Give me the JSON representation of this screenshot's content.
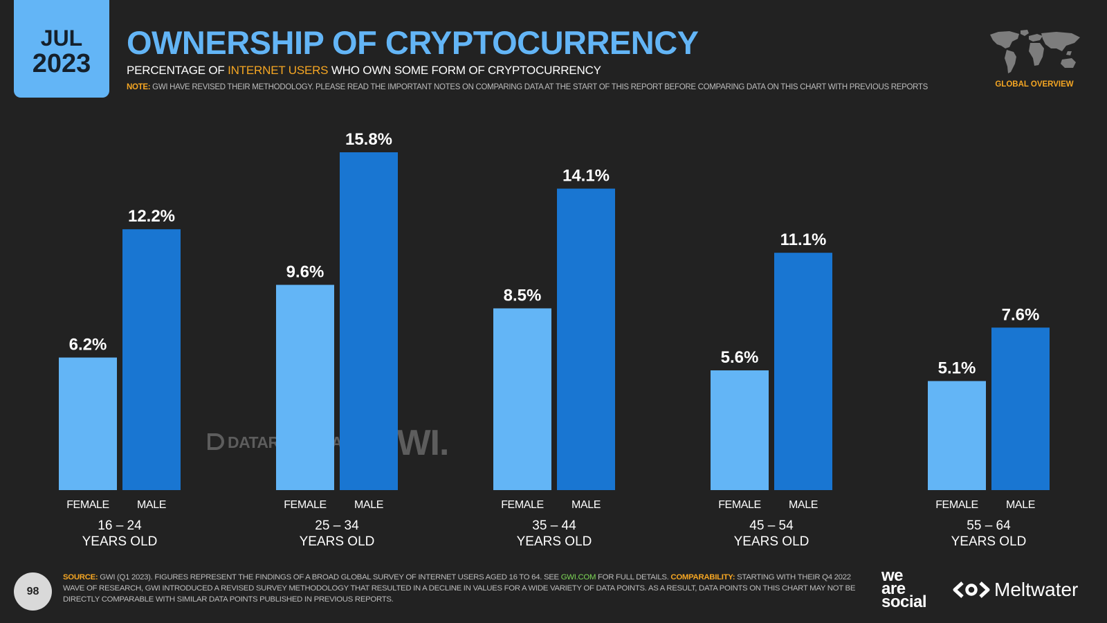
{
  "header": {
    "month": "JUL",
    "year": "2023",
    "title": "OWNERSHIP OF CRYPTOCURRENCY",
    "subtitle_pre": "PERCENTAGE OF ",
    "subtitle_highlight": "INTERNET USERS",
    "subtitle_post": " WHO OWN SOME FORM OF CRYPTOCURRENCY",
    "note_label": "NOTE:",
    "note_text": " GWI HAVE REVISED THEIR METHODOLOGY. PLEASE READ THE IMPORTANT NOTES ON COMPARING DATA AT THE START OF THIS REPORT BEFORE COMPARING DATA ON THIS CHART WITH PREVIOUS REPORTS",
    "overview_label": "GLOBAL OVERVIEW"
  },
  "chart_data": {
    "type": "bar",
    "title": "OWNERSHIP OF CRYPTOCURRENCY",
    "categories": [
      "16 – 24",
      "25 – 34",
      "35 – 44",
      "45 – 54",
      "55 – 64"
    ],
    "category_suffix": "YEARS OLD",
    "series": [
      {
        "name": "FEMALE",
        "color": "#63b5f6",
        "values": [
          6.2,
          9.6,
          8.5,
          5.6,
          5.1
        ],
        "labels": [
          "6.2%",
          "9.6%",
          "8.5%",
          "5.6%",
          "5.1%"
        ]
      },
      {
        "name": "MALE",
        "color": "#1976d2",
        "values": [
          12.2,
          15.8,
          14.1,
          11.1,
          7.6
        ],
        "labels": [
          "12.2%",
          "15.8%",
          "14.1%",
          "11.1%",
          "7.6%"
        ]
      }
    ],
    "ylim": [
      0,
      16.5
    ],
    "grid": false,
    "legend": "none"
  },
  "watermarks": {
    "datareportal": "DATAREPORTAL",
    "gwi": "GWI."
  },
  "footer": {
    "page_number": "98",
    "source_label": "SOURCE:",
    "source_text_1": " GWI (Q1 2023). FIGURES REPRESENT THE FINDINGS OF A BROAD GLOBAL SURVEY OF INTERNET USERS AGED 16 TO 64. SEE ",
    "source_link": "GWI.COM",
    "source_text_2": " FOR FULL DETAILS. ",
    "comparability_label": "COMPARABILITY:",
    "comparability_text": " STARTING WITH THEIR Q4 2022 WAVE OF RESEARCH, GWI INTRODUCED A REVISED SURVEY METHODOLOGY THAT RESULTED IN A DECLINE IN VALUES FOR A WIDE VARIETY OF DATA POINTS. AS A RESULT, DATA POINTS ON THIS CHART MAY NOT BE DIRECTLY COMPARABLE WITH SIMILAR DATA POINTS PUBLISHED IN PREVIOUS REPORTS.",
    "logo_we": "we",
    "logo_are": "are",
    "logo_social": "social",
    "logo_meltwater": "Meltwater"
  }
}
